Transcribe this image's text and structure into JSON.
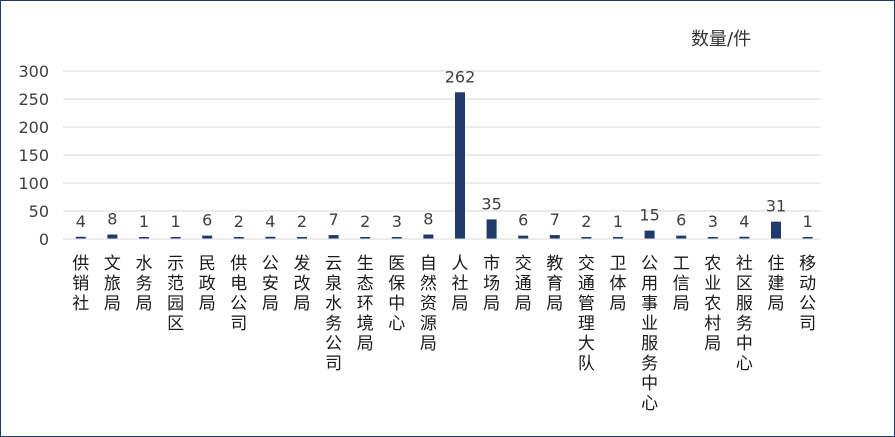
{
  "chart_data": {
    "type": "bar",
    "unit_label": "数量/件",
    "categories": [
      "供销社",
      "文旅局",
      "水务局",
      "示范园区",
      "民政局",
      "供电公司",
      "公安局",
      "发改局",
      "云泉水务公司",
      "生态环境局",
      "医保中心",
      "自然资源局",
      "人社局",
      "市场局",
      "交通局",
      "教育局",
      "交通管理大队",
      "卫体局",
      "公用事业服务中心",
      "工信局",
      "农业农村局",
      "社区服务中心",
      "住建局",
      "移动公司"
    ],
    "values": [
      4,
      8,
      1,
      1,
      6,
      2,
      4,
      2,
      7,
      2,
      3,
      8,
      262,
      35,
      6,
      7,
      2,
      1,
      15,
      6,
      3,
      4,
      31,
      1
    ],
    "value_labels": [
      "4",
      "8",
      "1",
      "1",
      "6",
      "2",
      "4",
      "2",
      "7",
      "2",
      "3",
      "8",
      "262",
      "35",
      "6",
      "7",
      "2",
      "1",
      "15",
      "6",
      "3",
      "4",
      "31",
      "1"
    ],
    "ylim": [
      0,
      300
    ],
    "yticks": [
      0,
      50,
      100,
      150,
      200,
      250,
      300
    ],
    "ytick_labels": [
      "0",
      "50",
      "100",
      "150",
      "200",
      "250",
      "300"
    ],
    "grid": true,
    "bar_color": "#1f3a6b",
    "grid_color": "#d9d9d9",
    "text_color": "#404040"
  }
}
